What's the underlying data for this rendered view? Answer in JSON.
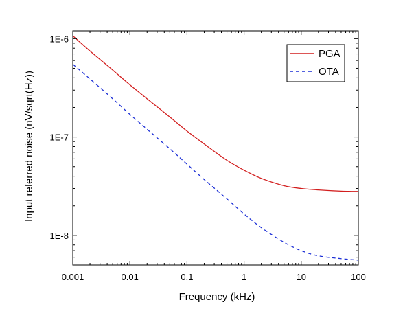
{
  "chart_data": {
    "type": "line",
    "title": "",
    "xlabel": "Frequency (kHz)",
    "ylabel": "Input referred noise (nV/sqrt(Hz))",
    "x_scale": "log",
    "y_scale": "log",
    "xlim": [
      0.001,
      100
    ],
    "ylim": [
      5e-09,
      1.2e-06
    ],
    "x_ticks": [
      0.001,
      0.01,
      0.1,
      1,
      10,
      100
    ],
    "x_tick_labels": [
      "0.001",
      "0.01",
      "0.1",
      "1",
      "10",
      "100"
    ],
    "y_ticks": [
      1e-08,
      1e-07,
      1e-06
    ],
    "y_tick_labels": [
      "1E-8",
      "1E-7",
      "1E-6"
    ],
    "grid": false,
    "legend": {
      "position": "top-right",
      "frame": true
    },
    "series": [
      {
        "name": "PGA",
        "color": "#d21e1e",
        "line_style": "solid",
        "x": [
          0.001,
          0.002,
          0.005,
          0.01,
          0.02,
          0.05,
          0.1,
          0.2,
          0.5,
          1,
          2,
          5,
          10,
          20,
          50,
          100
        ],
        "y": [
          1.07e-06,
          7.5e-07,
          4.8e-07,
          3.4e-07,
          2.45e-07,
          1.6e-07,
          1.15e-07,
          8.5e-08,
          5.8e-08,
          4.6e-08,
          3.8e-08,
          3.2e-08,
          3e-08,
          2.9e-08,
          2.82e-08,
          2.8e-08
        ]
      },
      {
        "name": "OTA",
        "color": "#1c2fd6",
        "line_style": "dashed",
        "x": [
          0.001,
          0.002,
          0.005,
          0.01,
          0.02,
          0.05,
          0.1,
          0.2,
          0.5,
          1,
          2,
          5,
          10,
          20,
          50,
          100
        ],
        "y": [
          5.5e-07,
          3.9e-07,
          2.45e-07,
          1.7e-07,
          1.2e-07,
          7.6e-08,
          5.3e-08,
          3.7e-08,
          2.35e-08,
          1.65e-08,
          1.2e-08,
          8.5e-09,
          7e-09,
          6.2e-09,
          5.8e-09,
          5.6e-09
        ]
      }
    ]
  }
}
